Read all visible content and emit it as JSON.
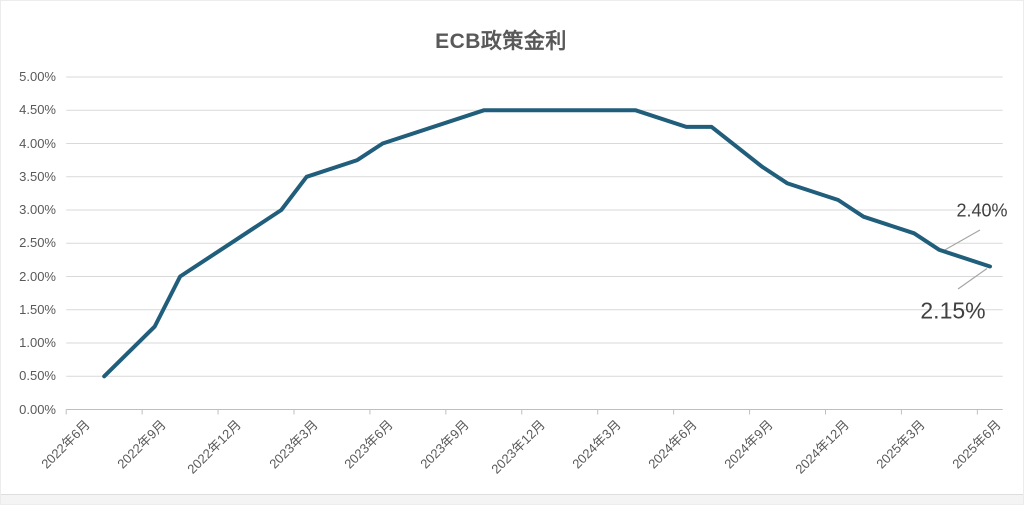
{
  "chart_data": {
    "type": "line",
    "title": "ECB政策金利",
    "legend": "none",
    "grid": "horizontal",
    "ylim": [
      0,
      5
    ],
    "y_tick_labels": [
      "5.00%",
      "4.50%",
      "4.00%",
      "3.50%",
      "3.00%",
      "2.50%",
      "2.00%",
      "1.50%",
      "1.00%",
      "0.50%",
      "0.00%"
    ],
    "y_tick_values": [
      5.0,
      4.5,
      4.0,
      3.5,
      3.0,
      2.5,
      2.0,
      1.5,
      1.0,
      0.5,
      0.0
    ],
    "x_axis_start_month": "2022年6月",
    "x_axis_end_month": "2025年6月",
    "x_slot_count": 37,
    "x_tick_labels": [
      "2022年6月",
      "2022年9月",
      "2022年12月",
      "2023年3月",
      "2023年6月",
      "2023年9月",
      "2023年12月",
      "2024年3月",
      "2024年6月",
      "2024年9月",
      "2024年12月",
      "2025年3月",
      "2025年6月"
    ],
    "x_tick_slot_indices": [
      0,
      3,
      6,
      9,
      12,
      15,
      18,
      21,
      24,
      27,
      30,
      33,
      36
    ],
    "series": [
      {
        "color": "#205E7C",
        "points": [
          {
            "month": "2022年7月",
            "slot": 1,
            "value": 0.5
          },
          {
            "month": "2022年9月",
            "slot": 3,
            "value": 1.25
          },
          {
            "month": "2022年10月",
            "slot": 4,
            "value": 2.0
          },
          {
            "month": "2022年12月",
            "slot": 6,
            "value": 2.5
          },
          {
            "month": "2023年2月",
            "slot": 8,
            "value": 3.0
          },
          {
            "month": "2023年3月",
            "slot": 9,
            "value": 3.5
          },
          {
            "month": "2023年5月",
            "slot": 11,
            "value": 3.75
          },
          {
            "month": "2023年6月",
            "slot": 12,
            "value": 4.0
          },
          {
            "month": "2023年10月",
            "slot": 16,
            "value": 4.5
          },
          {
            "month": "2024年4月",
            "slot": 22,
            "value": 4.5
          },
          {
            "month": "2024年6月",
            "slot": 24,
            "value": 4.25
          },
          {
            "month": "2024年7月",
            "slot": 25,
            "value": 4.25
          },
          {
            "month": "2024年9月",
            "slot": 27,
            "value": 3.65
          },
          {
            "month": "2024年10月",
            "slot": 28,
            "value": 3.4
          },
          {
            "month": "2024年12月",
            "slot": 30,
            "value": 3.15
          },
          {
            "month": "2025年1月",
            "slot": 31,
            "value": 2.9
          },
          {
            "month": "2025年3月",
            "slot": 33,
            "value": 2.65
          },
          {
            "month": "2025年4月",
            "slot": 34,
            "value": 2.4
          },
          {
            "month": "2025年6月",
            "slot": 36,
            "value": 2.15
          }
        ]
      }
    ],
    "annotations": [
      {
        "text": "2.40%",
        "month": "2025年4月",
        "slot": 34,
        "value": 2.4
      },
      {
        "text": "2.15%",
        "month": "2025年6月",
        "slot": 36,
        "value": 2.15
      }
    ],
    "colors": {
      "line": "#205E7C",
      "gridline": "#D9D9D9",
      "axis": "#BFBFBF",
      "tick_text": "#595959",
      "title_text": "#595959",
      "annotation_text": "#404040",
      "leader_line": "#A6A6A6"
    }
  }
}
